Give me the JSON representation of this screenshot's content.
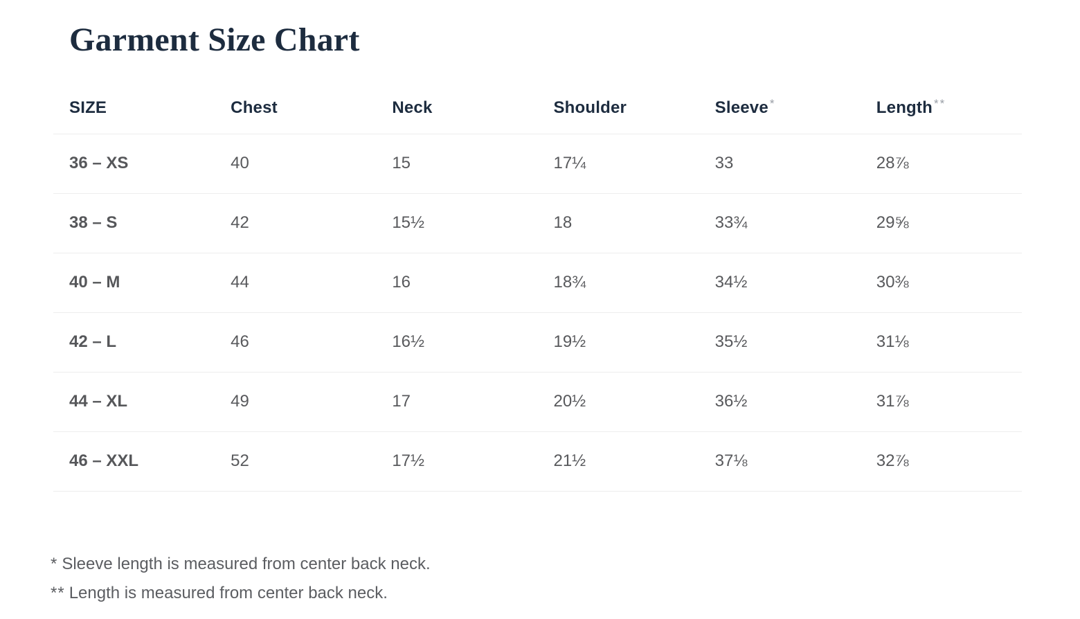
{
  "page": {
    "title": "Garment Size Chart"
  },
  "colors": {
    "title_navy": "#1d2c3f",
    "header_navy": "#1d2c3f",
    "body_gray": "#58595c",
    "divider_gray": "#ededed",
    "asterisk_gray": "#999ea6",
    "background": "#ffffff"
  },
  "table": {
    "columns": [
      {
        "label": "SIZE",
        "marker": ""
      },
      {
        "label": "Chest",
        "marker": ""
      },
      {
        "label": "Neck",
        "marker": ""
      },
      {
        "label": "Shoulder",
        "marker": ""
      },
      {
        "label": "Sleeve",
        "marker": "*"
      },
      {
        "label": "Length",
        "marker": "**"
      }
    ],
    "rows": [
      {
        "size": "36 – XS",
        "cells": [
          "40",
          "15",
          "17¼",
          "33",
          "28⅞"
        ]
      },
      {
        "size": "38 – S",
        "cells": [
          "42",
          "15½",
          "18",
          "33¾",
          "29⅝"
        ]
      },
      {
        "size": "40 – M",
        "cells": [
          "44",
          "16",
          "18¾",
          "34½",
          "30⅜"
        ]
      },
      {
        "size": "42 – L",
        "cells": [
          "46",
          "16½",
          "19½",
          "35½",
          "31⅛"
        ]
      },
      {
        "size": "44 – XL",
        "cells": [
          "49",
          "17",
          "20½",
          "36½",
          "31⅞"
        ]
      },
      {
        "size": "46 – XXL",
        "cells": [
          "52",
          "17½",
          "21½",
          "37⅛",
          "32⅞"
        ]
      }
    ]
  },
  "footnotes": [
    {
      "marker": "*",
      "text": "Sleeve length is measured from center back neck."
    },
    {
      "marker": "**",
      "text": "Length is measured from center back neck."
    }
  ]
}
